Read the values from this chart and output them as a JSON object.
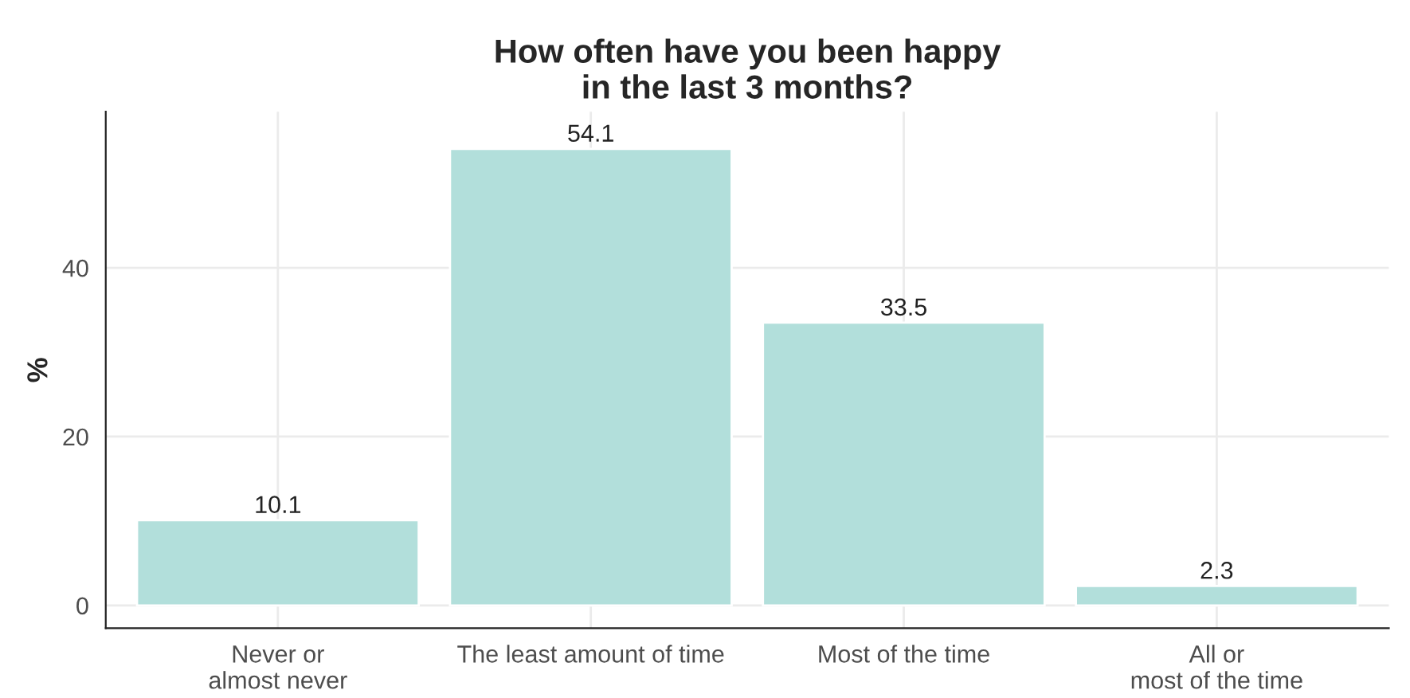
{
  "chart_data": {
    "type": "bar",
    "title": "How often have you been happy\nin the last 3 months?",
    "ylabel": "%",
    "categories": [
      "Never or\nalmost never",
      "The least amount of time",
      "Most of the time",
      "All or\nmost of the time"
    ],
    "values": [
      10.1,
      54.1,
      33.5,
      2.3
    ],
    "color": "#b2dfdb",
    "ylim": [
      -2.7,
      58.5
    ],
    "yticks": [
      0,
      20,
      40
    ],
    "grid": true,
    "data_labels": true
  }
}
